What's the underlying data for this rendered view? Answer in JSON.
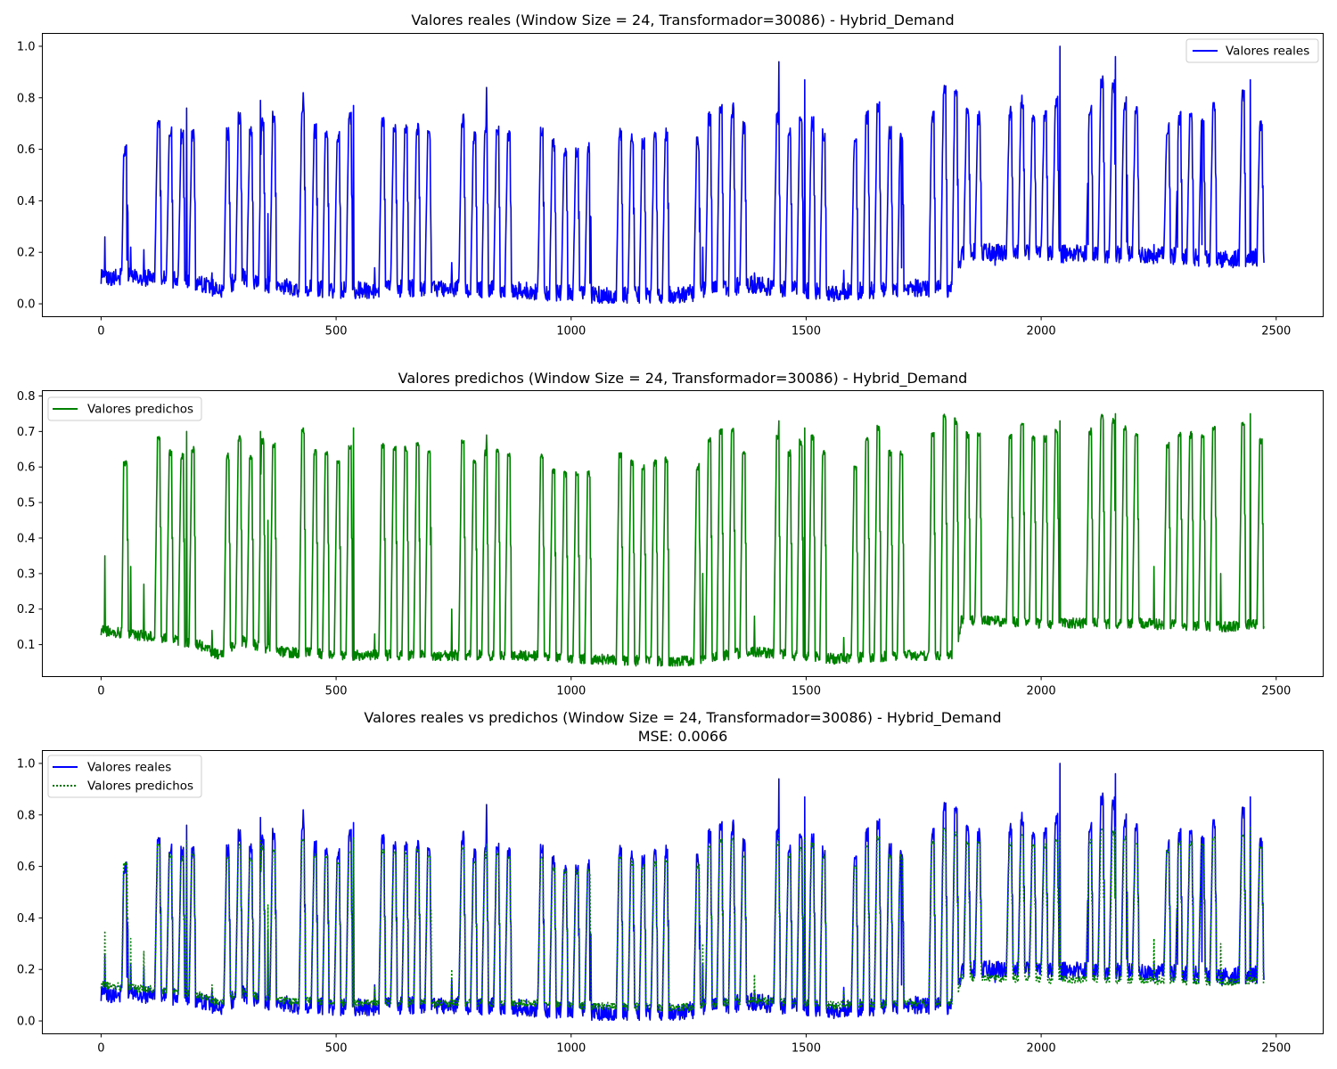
{
  "chart_data": [
    {
      "type": "line",
      "title": "Valores reales (Window Size = 24, Transformador=30086) - Hybrid_Demand",
      "xlim": [
        -125,
        2600
      ],
      "ylim": [
        -0.05,
        1.05
      ],
      "xticks": [
        0,
        500,
        1000,
        1500,
        2000,
        2500
      ],
      "yticks": [
        0.0,
        0.2,
        0.4,
        0.6,
        0.8,
        1.0
      ],
      "ytick_labels": [
        "0.0",
        "0.2",
        "0.4",
        "0.6",
        "0.8",
        "1.0"
      ],
      "legend_position": "upper-right",
      "series": [
        {
          "name": "Valores reales",
          "color": "#0000ff",
          "style": "solid",
          "key": "real"
        }
      ]
    },
    {
      "type": "line",
      "title": "Valores predichos (Window Size = 24, Transformador=30086) - Hybrid_Demand",
      "xlim": [
        -125,
        2600
      ],
      "ylim": [
        0.01,
        0.815
      ],
      "xticks": [
        0,
        500,
        1000,
        1500,
        2000,
        2500
      ],
      "yticks": [
        0.1,
        0.2,
        0.3,
        0.4,
        0.5,
        0.6,
        0.7,
        0.8
      ],
      "ytick_labels": [
        "0.1",
        "0.2",
        "0.3",
        "0.4",
        "0.5",
        "0.6",
        "0.7",
        "0.8"
      ],
      "legend_position": "upper-left",
      "series": [
        {
          "name": "Valores predichos",
          "color": "#008000",
          "style": "solid",
          "key": "pred"
        }
      ]
    },
    {
      "type": "line",
      "title": "Valores reales vs predichos (Window Size = 24, Transformador=30086) - Hybrid_Demand",
      "subtitle": "MSE: 0.0066",
      "xlim": [
        -125,
        2600
      ],
      "ylim": [
        -0.05,
        1.05
      ],
      "xticks": [
        0,
        500,
        1000,
        1500,
        2000,
        2500
      ],
      "yticks": [
        0.0,
        0.2,
        0.4,
        0.6,
        0.8,
        1.0
      ],
      "ytick_labels": [
        "0.0",
        "0.2",
        "0.4",
        "0.6",
        "0.8",
        "1.0"
      ],
      "legend_position": "upper-left",
      "series": [
        {
          "name": "Valores reales",
          "color": "#0000ff",
          "style": "solid",
          "key": "real"
        },
        {
          "name": "Valores predichos",
          "color": "#008000",
          "style": "dotted",
          "key": "pred"
        }
      ]
    }
  ],
  "series_data": {
    "n_points": 2475,
    "period_hours": 24,
    "blocks": [
      {
        "start": 0,
        "end": 115,
        "days": [
          [
            45,
            0.59,
            0.61,
            3
          ]
        ]
      },
      {
        "start": 115,
        "end": 210,
        "days": [
          [
            115,
            0.7,
            0.68,
            5
          ],
          [
            140,
            0.66,
            0.64,
            5
          ],
          [
            165,
            0.65,
            0.63,
            5
          ],
          [
            188,
            0.66,
            0.65,
            5
          ]
        ]
      },
      {
        "start": 260,
        "end": 370,
        "days": [
          [
            262,
            0.66,
            0.63,
            5
          ],
          [
            287,
            0.72,
            0.68,
            5
          ],
          [
            311,
            0.66,
            0.63,
            5
          ],
          [
            336,
            0.7,
            0.67,
            5
          ],
          [
            360,
            0.72,
            0.66,
            5
          ]
        ]
      },
      {
        "start": 420,
        "end": 540,
        "days": [
          [
            422,
            0.76,
            0.7,
            5
          ],
          [
            448,
            0.67,
            0.64,
            5
          ],
          [
            472,
            0.66,
            0.64,
            5
          ],
          [
            497,
            0.65,
            0.62,
            5
          ],
          [
            522,
            0.72,
            0.66,
            5
          ]
        ]
      },
      {
        "start": 590,
        "end": 705,
        "days": [
          [
            592,
            0.7,
            0.66,
            5
          ],
          [
            617,
            0.67,
            0.65,
            5
          ],
          [
            641,
            0.68,
            0.65,
            5
          ],
          [
            666,
            0.68,
            0.66,
            5
          ],
          [
            690,
            0.66,
            0.64,
            5
          ]
        ]
      },
      {
        "start": 760,
        "end": 875,
        "days": [
          [
            762,
            0.71,
            0.67,
            5
          ],
          [
            787,
            0.64,
            0.61,
            5
          ],
          [
            811,
            0.67,
            0.64,
            5
          ],
          [
            836,
            0.66,
            0.64,
            5
          ],
          [
            860,
            0.66,
            0.63,
            5
          ]
        ]
      },
      {
        "start": 925,
        "end": 1045,
        "days": [
          [
            930,
            0.66,
            0.63,
            5
          ],
          [
            955,
            0.62,
            0.59,
            5
          ],
          [
            980,
            0.6,
            0.58,
            5
          ],
          [
            1005,
            0.6,
            0.58,
            5
          ],
          [
            1030,
            0.6,
            0.58,
            5
          ]
        ]
      },
      {
        "start": 1095,
        "end": 1210,
        "days": [
          [
            1097,
            0.66,
            0.63,
            5
          ],
          [
            1122,
            0.64,
            0.61,
            5
          ],
          [
            1146,
            0.62,
            0.6,
            5
          ],
          [
            1171,
            0.64,
            0.61,
            5
          ],
          [
            1195,
            0.66,
            0.62,
            5
          ]
        ]
      },
      {
        "start": 1260,
        "end": 1375,
        "days": [
          [
            1262,
            0.62,
            0.6,
            5
          ],
          [
            1287,
            0.72,
            0.68,
            5
          ],
          [
            1311,
            0.75,
            0.7,
            5
          ],
          [
            1336,
            0.75,
            0.7,
            5
          ],
          [
            1360,
            0.68,
            0.64,
            5
          ]
        ]
      },
      {
        "start": 1430,
        "end": 1545,
        "days": [
          [
            1432,
            0.72,
            0.68,
            5
          ],
          [
            1457,
            0.66,
            0.64,
            5
          ],
          [
            1481,
            0.7,
            0.67,
            5
          ],
          [
            1506,
            0.7,
            0.68,
            5
          ],
          [
            1530,
            0.66,
            0.64,
            5
          ]
        ]
      },
      {
        "start": 1595,
        "end": 1710,
        "days": [
          [
            1597,
            0.62,
            0.6,
            5
          ],
          [
            1622,
            0.72,
            0.68,
            5
          ],
          [
            1646,
            0.76,
            0.71,
            5
          ],
          [
            1671,
            0.66,
            0.64,
            5
          ],
          [
            1695,
            0.66,
            0.64,
            5
          ]
        ]
      },
      {
        "start": 1760,
        "end": 1875,
        "days": [
          [
            1762,
            0.72,
            0.69,
            5
          ],
          [
            1787,
            0.82,
            0.74,
            5
          ],
          [
            1811,
            0.8,
            0.73,
            5
          ],
          [
            1836,
            0.74,
            0.69,
            5
          ],
          [
            1860,
            0.72,
            0.69,
            5
          ]
        ]
      },
      {
        "start": 1925,
        "end": 2045,
        "days": [
          [
            1927,
            0.74,
            0.69,
            5
          ],
          [
            1952,
            0.78,
            0.72,
            5
          ],
          [
            1976,
            0.72,
            0.68,
            5
          ],
          [
            2001,
            0.72,
            0.68,
            5
          ],
          [
            2025,
            0.78,
            0.7,
            5
          ]
        ]
      },
      {
        "start": 2095,
        "end": 2210,
        "days": [
          [
            2097,
            0.76,
            0.7,
            5
          ],
          [
            2122,
            0.86,
            0.74,
            5
          ],
          [
            2146,
            0.84,
            0.73,
            5
          ],
          [
            2171,
            0.78,
            0.71,
            5
          ],
          [
            2195,
            0.74,
            0.69,
            5
          ]
        ]
      },
      {
        "start": 2260,
        "end": 2375,
        "days": [
          [
            2262,
            0.68,
            0.66,
            5
          ],
          [
            2287,
            0.72,
            0.69,
            5
          ],
          [
            2311,
            0.72,
            0.69,
            5
          ],
          [
            2336,
            0.72,
            0.69,
            5
          ],
          [
            2360,
            0.76,
            0.71,
            5
          ]
        ]
      },
      {
        "start": 2420,
        "end": 2475,
        "days": [
          [
            2422,
            0.8,
            0.72,
            5
          ],
          [
            2460,
            0.7,
            0.67,
            5
          ]
        ]
      }
    ],
    "spikes": [
      [
        8,
        0.26,
        0.35
      ],
      [
        55,
        0.17,
        0.16
      ],
      [
        63,
        0.22,
        0.32
      ],
      [
        91,
        0.21,
        0.27
      ],
      [
        182,
        0.76,
        0.7
      ],
      [
        236,
        0.12,
        0.14
      ],
      [
        339,
        0.79,
        0.7
      ],
      [
        355,
        0.35,
        0.45
      ],
      [
        430,
        0.82,
        0.71
      ],
      [
        537,
        0.77,
        0.71
      ],
      [
        582,
        0.14,
        0.13
      ],
      [
        702,
        0.25,
        0.43
      ],
      [
        746,
        0.16,
        0.2
      ],
      [
        820,
        0.84,
        0.69
      ],
      [
        1040,
        0.08,
        0.1
      ],
      [
        1273,
        0.28,
        0.4
      ],
      [
        1280,
        0.22,
        0.3
      ],
      [
        1390,
        0.12,
        0.18
      ],
      [
        1442,
        0.94,
        0.73
      ],
      [
        1497,
        0.87,
        0.71
      ],
      [
        1580,
        0.13,
        0.12
      ],
      [
        1703,
        0.14,
        0.2
      ],
      [
        1819,
        0.83,
        0.72
      ],
      [
        1902,
        0.15,
        0.18
      ],
      [
        2040,
        1.0,
        0.73
      ],
      [
        2100,
        0.23,
        0.38
      ],
      [
        2158,
        0.96,
        0.75
      ],
      [
        2182,
        0.24,
        0.4
      ],
      [
        2240,
        0.23,
        0.32
      ],
      [
        2290,
        0.22,
        0.3
      ],
      [
        2342,
        0.23,
        0.3
      ],
      [
        2382,
        0.2,
        0.3
      ],
      [
        2445,
        0.87,
        0.75
      ]
    ],
    "base_level": [
      [
        0,
        0.1,
        0.14
      ],
      [
        120,
        0.1,
        0.12
      ],
      [
        210,
        0.08,
        0.1
      ],
      [
        250,
        0.05,
        0.07
      ],
      [
        300,
        0.1,
        0.11
      ],
      [
        380,
        0.06,
        0.08
      ],
      [
        550,
        0.05,
        0.07
      ],
      [
        720,
        0.06,
        0.07
      ],
      [
        880,
        0.05,
        0.07
      ],
      [
        1050,
        0.03,
        0.06
      ],
      [
        1220,
        0.03,
        0.05
      ],
      [
        1380,
        0.07,
        0.08
      ],
      [
        1560,
        0.04,
        0.06
      ],
      [
        1730,
        0.06,
        0.07
      ],
      [
        1820,
        0.05,
        0.07
      ],
      [
        1830,
        0.2,
        0.17
      ],
      [
        2000,
        0.19,
        0.16
      ],
      [
        2200,
        0.19,
        0.16
      ],
      [
        2400,
        0.17,
        0.15
      ],
      [
        2475,
        0.18,
        0.16
      ]
    ]
  }
}
